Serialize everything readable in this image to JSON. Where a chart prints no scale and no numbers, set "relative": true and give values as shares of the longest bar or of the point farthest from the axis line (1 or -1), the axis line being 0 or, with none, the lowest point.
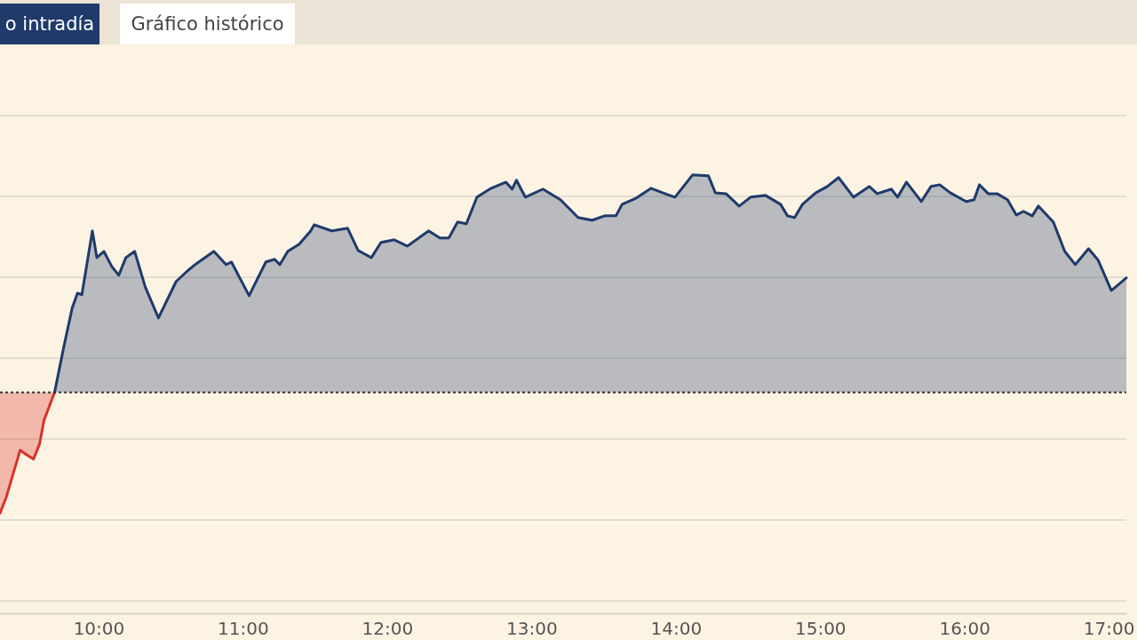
{
  "chart_data": {
    "type": "area",
    "relative": true,
    "grid": "y",
    "marker": "none",
    "line_style": "solid",
    "annotations": [
      "o intradía",
      "Gráfico histórico"
    ],
    "xlim": [
      9.317,
      17.122
    ],
    "xticks": [
      {
        "value": 10,
        "label": "10:00"
      },
      {
        "value": 11,
        "label": "11:00"
      },
      {
        "value": 12,
        "label": "12:00"
      },
      {
        "value": 13,
        "label": "13:00"
      },
      {
        "value": 14,
        "label": "14:00"
      },
      {
        "value": 15,
        "label": "15:00"
      },
      {
        "value": 16,
        "label": "16:00"
      },
      {
        "value": 17,
        "label": "17:00"
      }
    ],
    "ref_lines": [
      {
        "axis": "y",
        "value": 0,
        "line_style": "dotted",
        "color": "#333333"
      }
    ],
    "series": [
      {
        "color": "#d9312b",
        "x": [
          9.317,
          9.36,
          9.409,
          9.457,
          9.5,
          9.549,
          9.591,
          9.622,
          9.695
        ],
        "values": [
          -0.555,
          -0.482,
          -0.371,
          -0.265,
          -0.286,
          -0.306,
          -0.237,
          -0.127,
          0
        ]
      },
      {
        "color": "#1f3a6b",
        "x": [
          9.695,
          9.756,
          9.817,
          9.854,
          9.884,
          9.957,
          9.988,
          10.037,
          10.091,
          10.14,
          10.189,
          10.25,
          10.323,
          10.415,
          10.537,
          10.616,
          10.677,
          10.799,
          10.884,
          10.921,
          11.043,
          11.159,
          11.22,
          11.256,
          11.311,
          11.39,
          11.47,
          11.494,
          11.616,
          11.726,
          11.799,
          11.89,
          11.957,
          12.049,
          12.14,
          12.287,
          12.366,
          12.427,
          12.488,
          12.549,
          12.622,
          12.72,
          12.823,
          12.866,
          12.896,
          12.957,
          13.079,
          13.201,
          13.323,
          13.421,
          13.506,
          13.585,
          13.628,
          13.726,
          13.829,
          13.909,
          13.994,
          14.116,
          14.226,
          14.274,
          14.348,
          14.439,
          14.518,
          14.622,
          14.726,
          14.774,
          14.823,
          14.878,
          14.97,
          15.049,
          15.128,
          15.232,
          15.341,
          15.396,
          15.494,
          15.537,
          15.598,
          15.701,
          15.768,
          15.829,
          15.902,
          16.012,
          16.067,
          16.104,
          16.165,
          16.226,
          16.299,
          16.36,
          16.409,
          16.47,
          16.512,
          16.616,
          16.695,
          16.768,
          16.86,
          16.927,
          17.018,
          17.122
        ],
        "values": [
          0,
          0.2,
          0.388,
          0.457,
          0.449,
          0.743,
          0.62,
          0.649,
          0.58,
          0.539,
          0.62,
          0.649,
          0.486,
          0.343,
          0.51,
          0.559,
          0.592,
          0.649,
          0.588,
          0.6,
          0.445,
          0.6,
          0.612,
          0.588,
          0.649,
          0.682,
          0.743,
          0.771,
          0.743,
          0.755,
          0.653,
          0.62,
          0.69,
          0.702,
          0.673,
          0.743,
          0.71,
          0.71,
          0.784,
          0.776,
          0.898,
          0.939,
          0.967,
          0.935,
          0.976,
          0.898,
          0.935,
          0.886,
          0.804,
          0.792,
          0.812,
          0.812,
          0.865,
          0.894,
          0.939,
          0.918,
          0.898,
          1,
          0.996,
          0.918,
          0.914,
          0.857,
          0.898,
          0.906,
          0.865,
          0.812,
          0.804,
          0.865,
          0.918,
          0.947,
          0.988,
          0.898,
          0.947,
          0.914,
          0.935,
          0.898,
          0.967,
          0.878,
          0.947,
          0.955,
          0.918,
          0.878,
          0.886,
          0.955,
          0.914,
          0.914,
          0.886,
          0.816,
          0.833,
          0.812,
          0.857,
          0.784,
          0.649,
          0.588,
          0.661,
          0.608,
          0.469,
          0.527
        ]
      }
    ]
  }
}
